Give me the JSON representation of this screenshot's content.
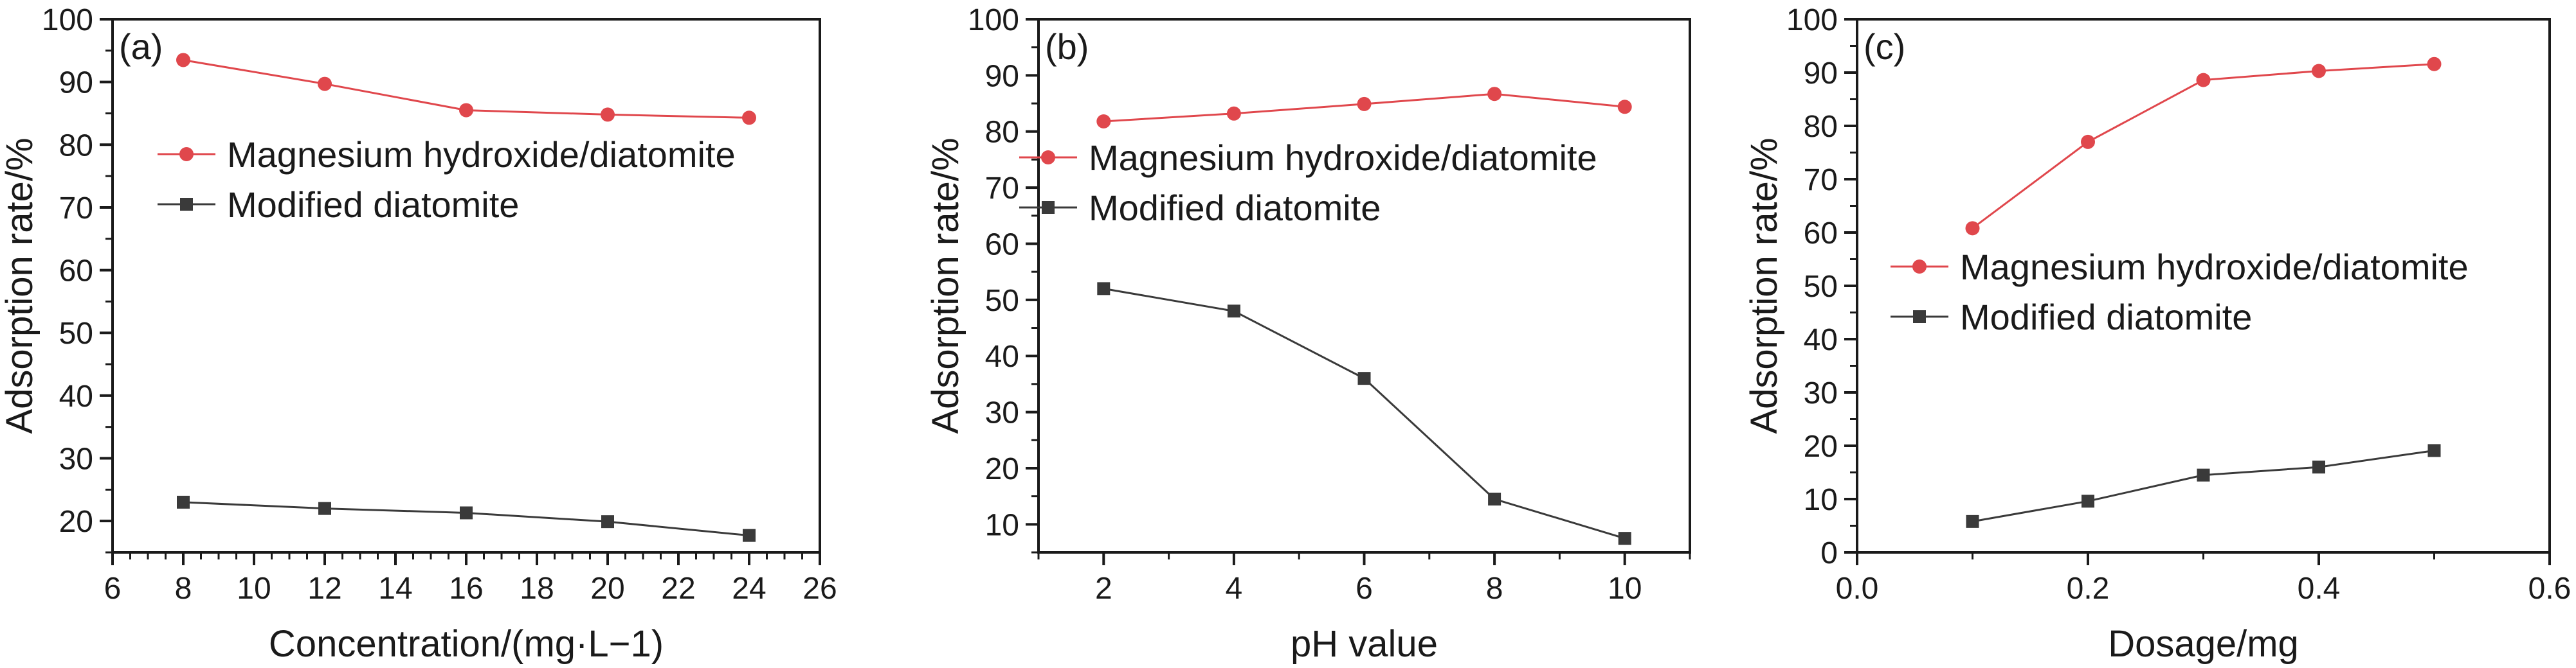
{
  "colors": {
    "series_1": "#e0474c",
    "series_2": "#3a3a3a",
    "axis": "#1a1a1a",
    "background": "#ffffff"
  },
  "chart_data": [
    {
      "type": "line",
      "panel_label": "(a)",
      "xlabel": "Concentration/(mg·L−1)",
      "ylabel": "Adsorption rate/%",
      "xlim": [
        6,
        26
      ],
      "ylim": [
        15,
        100
      ],
      "x_ticks": [
        "6",
        "8",
        "10",
        "12",
        "14",
        "16",
        "18",
        "20",
        "22",
        "24",
        "26"
      ],
      "y_ticks": [
        "20",
        "30",
        "40",
        "50",
        "60",
        "70",
        "80",
        "90",
        "100"
      ],
      "legend_position": "upper-right",
      "x": [
        8,
        12,
        16,
        20,
        24
      ],
      "series": [
        {
          "name": "Magnesium hydroxide/diatomite",
          "marker": "circle",
          "values": [
            93.5,
            89.7,
            85.5,
            84.8,
            84.3
          ]
        },
        {
          "name": "Modified diatomite",
          "marker": "square",
          "values": [
            23.0,
            22.0,
            21.3,
            19.9,
            17.7
          ]
        }
      ]
    },
    {
      "type": "line",
      "panel_label": "(b)",
      "xlabel": "pH value",
      "ylabel": "Adsorption rate/%",
      "xlim": [
        1,
        11
      ],
      "ylim": [
        5,
        100
      ],
      "x_ticks": [
        "2",
        "4",
        "6",
        "8",
        "10"
      ],
      "y_ticks": [
        "10",
        "20",
        "30",
        "40",
        "50",
        "60",
        "70",
        "80",
        "90",
        "100"
      ],
      "legend_position": "upper-right",
      "x": [
        2,
        4,
        6,
        8,
        10
      ],
      "series": [
        {
          "name": "Magnesium hydroxide/diatomite",
          "marker": "circle",
          "values": [
            81.8,
            83.2,
            84.9,
            86.7,
            84.4
          ]
        },
        {
          "name": "Modified diatomite",
          "marker": "square",
          "values": [
            52.0,
            48.0,
            36.0,
            14.5,
            7.5
          ]
        }
      ]
    },
    {
      "type": "line",
      "panel_label": "(c)",
      "xlabel": "Dosage/mg",
      "ylabel": "Adsorption rate/%",
      "xlim": [
        0.0,
        0.6
      ],
      "ylim": [
        0,
        100
      ],
      "x_ticks": [
        "0.0",
        "0.2",
        "0.4",
        "0.6"
      ],
      "y_ticks": [
        "0",
        "10",
        "20",
        "30",
        "40",
        "50",
        "60",
        "70",
        "80",
        "90",
        "100"
      ],
      "legend_position": "middle-right",
      "x": [
        0.1,
        0.2,
        0.3,
        0.4,
        0.5
      ],
      "series": [
        {
          "name": "Magnesium hydroxide/diatomite",
          "marker": "circle",
          "values": [
            60.8,
            77.0,
            88.6,
            90.3,
            91.6
          ]
        },
        {
          "name": "Modified diatomite",
          "marker": "square",
          "values": [
            5.8,
            9.6,
            14.5,
            16.0,
            19.1
          ]
        }
      ]
    }
  ]
}
